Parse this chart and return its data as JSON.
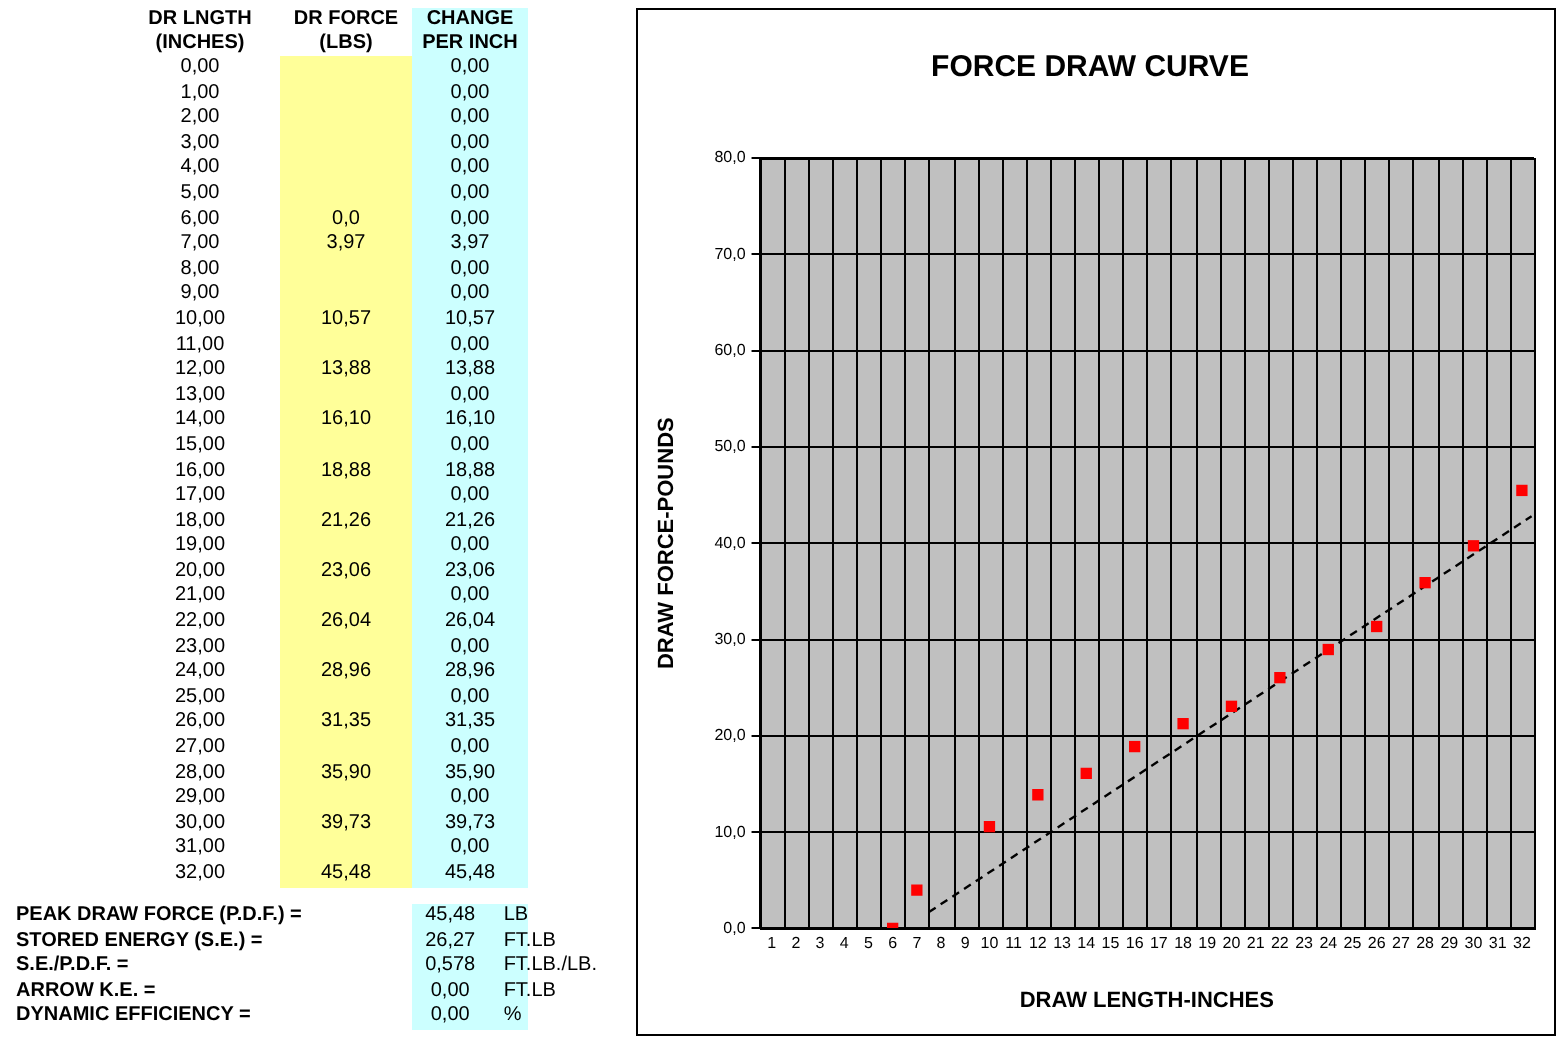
{
  "chart_data": [
    {
      "type": "heatmap",
      "ylabel": "DR LNGTH (INCHES)",
      "categories": [
        "DR  FORCE (LBS)",
        "CHANGE PER INCH"
      ],
      "y_categories": [
        "0,00",
        "1,00",
        "2,00",
        "3,00",
        "4,00",
        "5,00",
        "6,00",
        "7,00",
        "8,00",
        "9,00",
        "10,00",
        "11,00",
        "12,00",
        "13,00",
        "14,00",
        "15,00",
        "16,00",
        "17,00",
        "18,00",
        "19,00",
        "20,00",
        "21,00",
        "22,00",
        "23,00",
        "24,00",
        "25,00",
        "26,00",
        "27,00",
        "28,00",
        "29,00",
        "30,00",
        "31,00",
        "32,00"
      ],
      "cells": [
        [
          null,
          0
        ],
        [
          null,
          0
        ],
        [
          null,
          0
        ],
        [
          null,
          0
        ],
        [
          null,
          0
        ],
        [
          null,
          0
        ],
        [
          0.0,
          0
        ],
        [
          3.97,
          3.97
        ],
        [
          null,
          0
        ],
        [
          null,
          0
        ],
        [
          10.57,
          10.57
        ],
        [
          null,
          0
        ],
        [
          13.88,
          13.88
        ],
        [
          null,
          0
        ],
        [
          16.1,
          16.1
        ],
        [
          null,
          0
        ],
        [
          18.88,
          18.88
        ],
        [
          null,
          0
        ],
        [
          21.26,
          21.26
        ],
        [
          null,
          0
        ],
        [
          23.06,
          23.06
        ],
        [
          null,
          0
        ],
        [
          26.04,
          26.04
        ],
        [
          null,
          0
        ],
        [
          28.96,
          28.96
        ],
        [
          null,
          0
        ],
        [
          31.35,
          31.35
        ],
        [
          null,
          0
        ],
        [
          35.9,
          35.9
        ],
        [
          null,
          0
        ],
        [
          39.73,
          39.73
        ],
        [
          null,
          0
        ],
        [
          45.48,
          45.48
        ]
      ],
      "cell_labels": [
        [
          null,
          "0,00"
        ],
        [
          null,
          "0,00"
        ],
        [
          null,
          "0,00"
        ],
        [
          null,
          "0,00"
        ],
        [
          null,
          "0,00"
        ],
        [
          null,
          "0,00"
        ],
        [
          "0,0",
          "0,00"
        ],
        [
          "3,97",
          "3,97"
        ],
        [
          null,
          "0,00"
        ],
        [
          null,
          "0,00"
        ],
        [
          "10,57",
          "10,57"
        ],
        [
          null,
          "0,00"
        ],
        [
          "13,88",
          "13,88"
        ],
        [
          null,
          "0,00"
        ],
        [
          "16,10",
          "16,10"
        ],
        [
          null,
          "0,00"
        ],
        [
          "18,88",
          "18,88"
        ],
        [
          null,
          "0,00"
        ],
        [
          "21,26",
          "21,26"
        ],
        [
          null,
          "0,00"
        ],
        [
          "23,06",
          "23,06"
        ],
        [
          null,
          "0,00"
        ],
        [
          "26,04",
          "26,04"
        ],
        [
          null,
          "0,00"
        ],
        [
          "28,96",
          "28,96"
        ],
        [
          null,
          "0,00"
        ],
        [
          "31,35",
          "31,35"
        ],
        [
          null,
          "0,00"
        ],
        [
          "35,90",
          "35,90"
        ],
        [
          null,
          "0,00"
        ],
        [
          "39,73",
          "39,73"
        ],
        [
          null,
          "0,00"
        ],
        [
          "45,48",
          "45,48"
        ]
      ],
      "annotations": [
        "PEAK DRAW FORCE (P.D.F.) =",
        "45,48",
        "LB",
        "STORED ENERGY (S.E.) =",
        "26,27",
        "FT.LB",
        "S.E./P.D.F. =",
        "0,578",
        "FT.LB./LB.",
        "ARROW K.E. =",
        "0,00",
        "FT.LB",
        "DYNAMIC EFFICIENCY =",
        "0,00",
        "%"
      ]
    },
    {
      "type": "scatter",
      "title": "FORCE DRAW CURVE",
      "xlabel": "DRAW LENGTH-INCHES",
      "ylabel": "DRAW FORCE-POUNDS",
      "x": [
        6,
        7,
        10,
        12,
        14,
        16,
        18,
        20,
        22,
        24,
        26,
        28,
        30,
        32
      ],
      "xlim": [
        0.5,
        32.5
      ],
      "xticks": [
        1,
        2,
        3,
        4,
        5,
        6,
        7,
        8,
        9,
        10,
        11,
        12,
        13,
        14,
        15,
        16,
        17,
        18,
        19,
        20,
        21,
        22,
        23,
        24,
        25,
        26,
        27,
        28,
        29,
        30,
        31,
        32
      ],
      "ylim": [
        0,
        80
      ],
      "yticks": [
        {
          "value": 0,
          "label": "0,0"
        },
        {
          "value": 10,
          "label": "10,0"
        },
        {
          "value": 20,
          "label": "20,0"
        },
        {
          "value": 30,
          "label": "30,0"
        },
        {
          "value": 40,
          "label": "40,0"
        },
        {
          "value": 50,
          "label": "50,0"
        },
        {
          "value": 60,
          "label": "60,0"
        },
        {
          "value": 70,
          "label": "70,0"
        },
        {
          "value": 80,
          "label": "80,0"
        }
      ],
      "grid": true,
      "legend": false,
      "marker": "square",
      "series": [
        {
          "color": "#ff0000",
          "values": [
            0.0,
            3.97,
            10.57,
            13.88,
            16.1,
            18.88,
            21.26,
            23.06,
            26.04,
            28.96,
            31.35,
            35.9,
            39.73,
            45.48
          ]
        },
        {
          "type": "line",
          "color": "#000000",
          "line_style": "dashed",
          "marker": "none",
          "x": [
            7.5,
            32.4
          ],
          "values": [
            1.7,
            42.8
          ]
        }
      ]
    }
  ]
}
